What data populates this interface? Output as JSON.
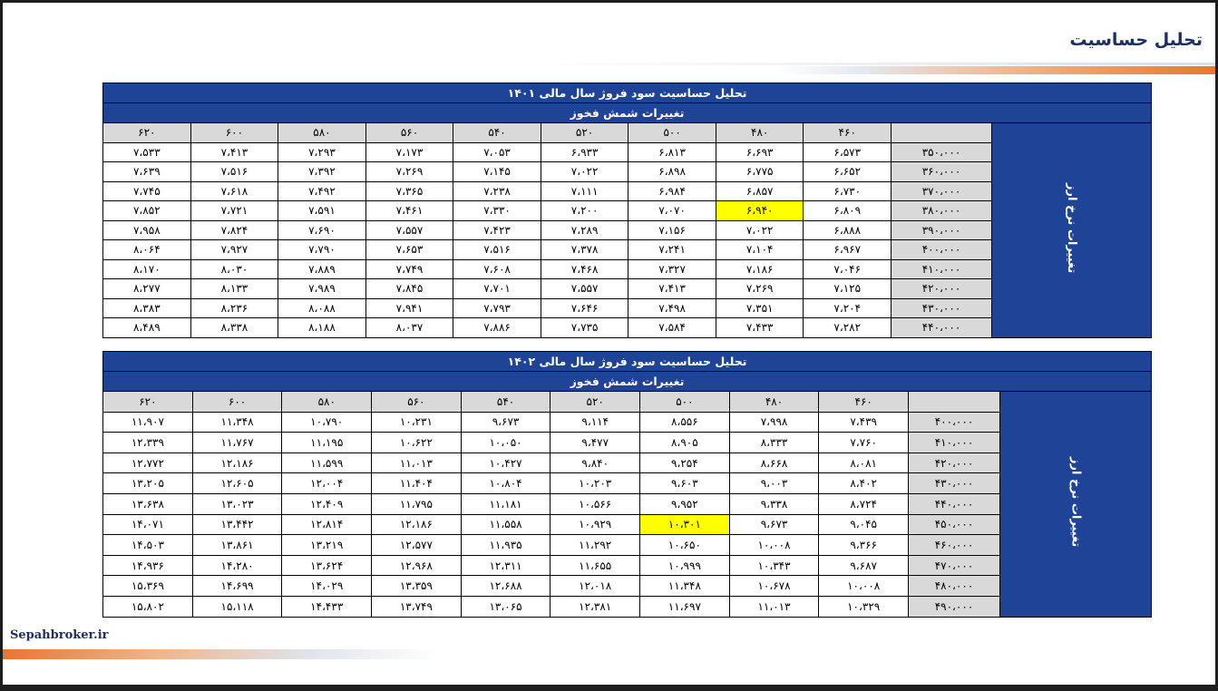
{
  "page_title": "تحلیل حساسیت",
  "brand": "Sepahbroker.ir",
  "tables": [
    {
      "title": "تحلیل حساسیت سود فروژ سال مالی ۱۴۰۱",
      "subtitle": "تغییرات شمش فخوز",
      "side_label": "تغییرات نرخ ارز",
      "columns": [
        "۴۶۰",
        "۴۸۰",
        "۵۰۰",
        "۵۲۰",
        "۵۴۰",
        "۵۶۰",
        "۵۸۰",
        "۶۰۰",
        "۶۲۰"
      ],
      "rows": [
        {
          "label": "۳۵۰،۰۰۰",
          "values": [
            "۶،۵۷۳",
            "۶،۶۹۳",
            "۶،۸۱۳",
            "۶،۹۳۳",
            "۷،۰۵۳",
            "۷،۱۷۳",
            "۷،۲۹۳",
            "۷،۴۱۳",
            "۷،۵۳۳"
          ]
        },
        {
          "label": "۳۶۰،۰۰۰",
          "values": [
            "۶،۶۵۲",
            "۶،۷۷۵",
            "۶،۸۹۸",
            "۷،۰۲۲",
            "۷،۱۴۵",
            "۷،۲۶۹",
            "۷،۳۹۲",
            "۷،۵۱۶",
            "۷،۶۳۹"
          ]
        },
        {
          "label": "۳۷۰،۰۰۰",
          "values": [
            "۶،۷۳۰",
            "۶،۸۵۷",
            "۶،۹۸۴",
            "۷،۱۱۱",
            "۷،۲۳۸",
            "۷،۳۶۵",
            "۷،۴۹۲",
            "۷،۶۱۸",
            "۷،۷۴۵"
          ]
        },
        {
          "label": "۳۸۰،۰۰۰",
          "values": [
            "۶،۸۰۹",
            "۶،۹۴۰",
            "۷،۰۷۰",
            "۷،۲۰۰",
            "۷،۳۳۰",
            "۷،۴۶۱",
            "۷،۵۹۱",
            "۷،۷۲۱",
            "۷،۸۵۲"
          ]
        },
        {
          "label": "۳۹۰،۰۰۰",
          "values": [
            "۶،۸۸۸",
            "۷،۰۲۲",
            "۷،۱۵۶",
            "۷،۲۸۹",
            "۷،۴۲۳",
            "۷،۵۵۷",
            "۷،۶۹۰",
            "۷،۸۲۴",
            "۷،۹۵۸"
          ]
        },
        {
          "label": "۴۰۰،۰۰۰",
          "values": [
            "۶،۹۶۷",
            "۷،۱۰۴",
            "۷،۲۴۱",
            "۷،۳۷۸",
            "۷،۵۱۶",
            "۷،۶۵۳",
            "۷،۷۹۰",
            "۷،۹۲۷",
            "۸،۰۶۴"
          ]
        },
        {
          "label": "۴۱۰،۰۰۰",
          "values": [
            "۷،۰۴۶",
            "۷،۱۸۶",
            "۷،۳۲۷",
            "۷،۴۶۸",
            "۷،۶۰۸",
            "۷،۷۴۹",
            "۷،۸۸۹",
            "۸،۰۳۰",
            "۸،۱۷۰"
          ]
        },
        {
          "label": "۴۲۰،۰۰۰",
          "values": [
            "۷،۱۲۵",
            "۷،۲۶۹",
            "۷،۴۱۳",
            "۷،۵۵۷",
            "۷،۷۰۱",
            "۷،۸۴۵",
            "۷،۹۸۹",
            "۸،۱۳۳",
            "۸،۲۷۷"
          ]
        },
        {
          "label": "۴۳۰،۰۰۰",
          "values": [
            "۷،۲۰۴",
            "۷،۳۵۱",
            "۷،۴۹۸",
            "۷،۶۴۶",
            "۷،۷۹۳",
            "۷،۹۴۱",
            "۸،۰۸۸",
            "۸،۲۳۶",
            "۸،۳۸۳"
          ]
        },
        {
          "label": "۴۴۰،۰۰۰",
          "values": [
            "۷،۲۸۲",
            "۷،۴۳۳",
            "۷،۵۸۴",
            "۷،۷۳۵",
            "۷،۸۸۶",
            "۸،۰۳۷",
            "۸،۱۸۸",
            "۸،۳۳۸",
            "۸،۴۸۹"
          ]
        }
      ],
      "highlight": {
        "row": 3,
        "col": 1
      }
    },
    {
      "title": "تحلیل حساسیت سود فروژ سال مالی ۱۴۰۲",
      "subtitle": "تغییرات شمش فخوز",
      "side_label": "تغییرات نرخ ارز",
      "columns": [
        "۴۶۰",
        "۴۸۰",
        "۵۰۰",
        "۵۲۰",
        "۵۴۰",
        "۵۶۰",
        "۵۸۰",
        "۶۰۰",
        "۶۲۰"
      ],
      "rows": [
        {
          "label": "۴۰۰،۰۰۰",
          "values": [
            "۷،۴۳۹",
            "۷،۹۹۸",
            "۸،۵۵۶",
            "۹،۱۱۴",
            "۹،۶۷۳",
            "۱۰،۲۳۱",
            "۱۰،۷۹۰",
            "۱۱،۳۴۸",
            "۱۱،۹۰۷"
          ]
        },
        {
          "label": "۴۱۰،۰۰۰",
          "values": [
            "۷،۷۶۰",
            "۸،۳۳۳",
            "۸،۹۰۵",
            "۹،۴۷۷",
            "۱۰،۰۵۰",
            "۱۰،۶۲۲",
            "۱۱،۱۹۵",
            "۱۱،۷۶۷",
            "۱۲،۳۳۹"
          ]
        },
        {
          "label": "۴۲۰،۰۰۰",
          "values": [
            "۸،۰۸۱",
            "۸،۶۶۸",
            "۹،۲۵۴",
            "۹،۸۴۰",
            "۱۰،۴۲۷",
            "۱۱،۰۱۳",
            "۱۱،۵۹۹",
            "۱۲،۱۸۶",
            "۱۲،۷۷۲"
          ]
        },
        {
          "label": "۴۳۰،۰۰۰",
          "values": [
            "۸،۴۰۲",
            "۹،۰۰۳",
            "۹،۶۰۳",
            "۱۰،۲۰۳",
            "۱۰،۸۰۴",
            "۱۱،۴۰۴",
            "۱۲،۰۰۴",
            "۱۲،۶۰۵",
            "۱۳،۲۰۵"
          ]
        },
        {
          "label": "۴۴۰،۰۰۰",
          "values": [
            "۸،۷۲۴",
            "۹،۳۳۸",
            "۹،۹۵۲",
            "۱۰،۵۶۶",
            "۱۱،۱۸۱",
            "۱۱،۷۹۵",
            "۱۲،۴۰۹",
            "۱۳،۰۲۳",
            "۱۳،۶۳۸"
          ]
        },
        {
          "label": "۴۵۰،۰۰۰",
          "values": [
            "۹،۰۴۵",
            "۹،۶۷۳",
            "۱۰،۳۰۱",
            "۱۰،۹۲۹",
            "۱۱،۵۵۸",
            "۱۲،۱۸۶",
            "۱۲،۸۱۴",
            "۱۳،۴۴۲",
            "۱۴،۰۷۱"
          ]
        },
        {
          "label": "۴۶۰،۰۰۰",
          "values": [
            "۹،۳۶۶",
            "۱۰،۰۰۸",
            "۱۰،۶۵۰",
            "۱۱،۲۹۲",
            "۱۱،۹۳۵",
            "۱۲،۵۷۷",
            "۱۳،۲۱۹",
            "۱۳،۸۶۱",
            "۱۴،۵۰۳"
          ]
        },
        {
          "label": "۴۷۰،۰۰۰",
          "values": [
            "۹،۶۸۷",
            "۱۰،۳۴۳",
            "۱۰،۹۹۹",
            "۱۱،۶۵۵",
            "۱۲،۳۱۱",
            "۱۲،۹۶۸",
            "۱۳،۶۲۴",
            "۱۴،۲۸۰",
            "۱۴،۹۳۶"
          ]
        },
        {
          "label": "۴۸۰،۰۰۰",
          "values": [
            "۱۰،۰۰۸",
            "۱۰،۶۷۸",
            "۱۱،۳۴۸",
            "۱۲،۰۱۸",
            "۱۲،۶۸۸",
            "۱۳،۳۵۹",
            "۱۴،۰۲۹",
            "۱۴،۶۹۹",
            "۱۵،۳۶۹"
          ]
        },
        {
          "label": "۴۹۰،۰۰۰",
          "values": [
            "۱۰،۳۲۹",
            "۱۱،۰۱۳",
            "۱۱،۶۹۷",
            "۱۲،۳۸۱",
            "۱۳،۰۶۵",
            "۱۳،۷۴۹",
            "۱۴،۴۳۳",
            "۱۵،۱۱۸",
            "۱۵،۸۰۲"
          ]
        }
      ],
      "highlight": {
        "row": 5,
        "col": 2
      }
    }
  ]
}
